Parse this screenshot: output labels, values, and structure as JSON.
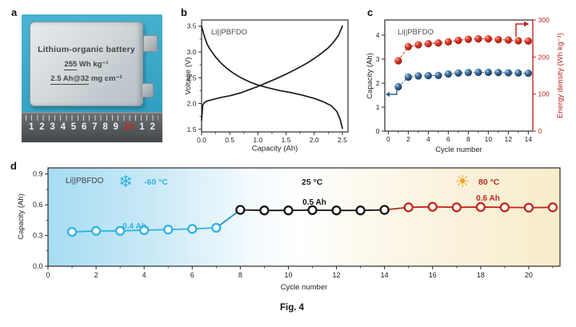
{
  "figure": {
    "caption": "Fig. 4"
  },
  "panels": {
    "a": {
      "label": "a"
    },
    "b": {
      "label": "b"
    },
    "c": {
      "label": "c"
    },
    "d": {
      "label": "d"
    }
  },
  "panel_a": {
    "battery_title": "Lithium-organic battery",
    "energy_value": "255",
    "energy_unit": " Wh kg⁻¹",
    "capacity_value": "2.5 Ah@32",
    "capacity_unit": " mg cm⁻²",
    "ruler_numbers": [
      "1",
      "2",
      "3",
      "4",
      "5",
      "6",
      "7",
      "8",
      "9",
      "10",
      "1",
      "2"
    ],
    "ruler_highlight_index": 9,
    "colors": {
      "photo_bg_top": "#4ab4d3",
      "photo_bg_bottom": "#2b9abc",
      "ruler_top": "#6a6f73",
      "ruler_bottom": "#42474b",
      "ruler_number": "#eef0f1",
      "ruler_highlight": "#c8281e"
    }
  },
  "chart_data": [
    {
      "id": "b",
      "type": "line",
      "title": "Li||PBFDO",
      "xlabel": "Capacity (Ah)",
      "ylabel": "Voltage (V)",
      "xlim": [
        0,
        2.6
      ],
      "ylim": [
        1.45,
        3.62
      ],
      "xticks": [
        0,
        0.5,
        1.0,
        1.5,
        2.0,
        2.5
      ],
      "xtick_labels": [
        "0.0",
        "0.5",
        "1.0",
        "1.5",
        "2.0",
        "2.5"
      ],
      "xminor": [
        0.25,
        0.75,
        1.25,
        1.75,
        2.25
      ],
      "yticks": [
        1.5,
        2.0,
        2.5,
        3.0,
        3.5
      ],
      "ytick_labels": [
        "1.5",
        "2.0",
        "2.5",
        "3.0",
        "3.5"
      ],
      "yminor": [
        1.75,
        2.25,
        2.75,
        3.25
      ],
      "line_color": "#1c1c1c",
      "series": [
        {
          "name": "charge",
          "points": [
            [
              0,
              1.68
            ],
            [
              0.02,
              1.97
            ],
            [
              0.05,
              2.02
            ],
            [
              0.1,
              2.05
            ],
            [
              0.2,
              2.08
            ],
            [
              0.35,
              2.12
            ],
            [
              0.5,
              2.15
            ],
            [
              0.7,
              2.21
            ],
            [
              0.85,
              2.27
            ],
            [
              1.0,
              2.33
            ],
            [
              1.15,
              2.4
            ],
            [
              1.3,
              2.47
            ],
            [
              1.5,
              2.57
            ],
            [
              1.7,
              2.68
            ],
            [
              1.9,
              2.8
            ],
            [
              2.1,
              2.95
            ],
            [
              2.25,
              3.08
            ],
            [
              2.35,
              3.2
            ],
            [
              2.43,
              3.32
            ],
            [
              2.5,
              3.5
            ]
          ]
        },
        {
          "name": "discharge",
          "points": [
            [
              0,
              3.5
            ],
            [
              0.02,
              3.42
            ],
            [
              0.05,
              3.3
            ],
            [
              0.1,
              3.15
            ],
            [
              0.15,
              3.05
            ],
            [
              0.25,
              2.9
            ],
            [
              0.35,
              2.78
            ],
            [
              0.45,
              2.68
            ],
            [
              0.55,
              2.6
            ],
            [
              0.7,
              2.5
            ],
            [
              0.85,
              2.42
            ],
            [
              1.0,
              2.36
            ],
            [
              1.2,
              2.3
            ],
            [
              1.4,
              2.25
            ],
            [
              1.6,
              2.21
            ],
            [
              1.8,
              2.16
            ],
            [
              2.0,
              2.1
            ],
            [
              2.15,
              2.04
            ],
            [
              2.3,
              1.96
            ],
            [
              2.4,
              1.85
            ],
            [
              2.46,
              1.7
            ],
            [
              2.5,
              1.52
            ]
          ]
        }
      ]
    },
    {
      "id": "c",
      "type": "scatter",
      "title": "Li||PBFDO",
      "xlabel": "Cycle number",
      "ylabel_left": "Capacity (Ah)",
      "ylabel_right": "Energy density (Wh kg⁻¹)",
      "xlim": [
        -0.35,
        14.45
      ],
      "ylim_left": [
        0,
        4.63
      ],
      "ylim_right": [
        0,
        300
      ],
      "xticks": [
        0,
        2,
        4,
        6,
        8,
        10,
        12,
        14
      ],
      "xminor": [
        1,
        3,
        5,
        7,
        9,
        11,
        13
      ],
      "yticks_left": [
        0,
        1,
        2,
        3,
        4
      ],
      "yticks_right": [
        0,
        100,
        200,
        300
      ],
      "cycles": [
        1,
        2,
        3,
        4,
        5,
        6,
        7,
        8,
        9,
        10,
        11,
        12,
        13,
        14
      ],
      "capacity_ah": [
        1.85,
        2.25,
        2.3,
        2.31,
        2.32,
        2.38,
        2.42,
        2.44,
        2.45,
        2.45,
        2.44,
        2.43,
        2.42,
        2.41
      ],
      "energy_density": [
        190,
        228,
        233,
        236,
        238,
        241,
        245,
        248,
        249,
        249,
        247,
        246,
        244,
        243
      ],
      "capacity_color": "#2e618f",
      "energy_color": "#c0231b"
    },
    {
      "id": "d",
      "type": "line",
      "title": "Li||PBFDO",
      "xlabel": "Cycle number",
      "ylabel": "Capacity (Ah)",
      "xlim": [
        0,
        21.3
      ],
      "ylim": [
        0,
        0.96
      ],
      "xticks": [
        0,
        2,
        4,
        6,
        8,
        10,
        12,
        14,
        16,
        18,
        20
      ],
      "xminor": [
        1,
        3,
        5,
        7,
        9,
        11,
        13,
        15,
        17,
        19,
        21
      ],
      "yticks": [
        0,
        0.3,
        0.6,
        0.9
      ],
      "ytick_labels": [
        "0.0",
        "0.3",
        "0.6",
        "0.9"
      ],
      "yminor": [
        0.15,
        0.45,
        0.75
      ],
      "bg_gradient": [
        "#a6dcf3",
        "#cdeaf7",
        "#f4fbfe",
        "#ffffff",
        "#fdfaf0",
        "#faf2dd",
        "#f7ecca"
      ],
      "segments": [
        {
          "name": "cold",
          "temp_label": "-60 °C",
          "icon": "❄",
          "capacity_label": "0.4 Ah",
          "color": "#2fb2e4",
          "cycles": [
            1,
            2,
            3,
            4,
            5,
            6,
            7
          ],
          "values": [
            0.335,
            0.345,
            0.345,
            0.352,
            0.358,
            0.365,
            0.375
          ]
        },
        {
          "name": "room",
          "temp_label": "25 °C",
          "icon": "",
          "capacity_label": "0.5 Ah",
          "color": "#151515",
          "cycles": [
            8,
            9,
            10,
            11,
            12,
            13,
            14
          ],
          "values": [
            0.55,
            0.545,
            0.545,
            0.548,
            0.545,
            0.545,
            0.55
          ]
        },
        {
          "name": "hot",
          "temp_label": "80 °C",
          "icon": "☀",
          "capacity_label": "0.6 Ah",
          "color": "#c4271d",
          "cycles": [
            15,
            16,
            17,
            18,
            19,
            20,
            21
          ],
          "values": [
            0.575,
            0.58,
            0.575,
            0.578,
            0.575,
            0.572,
            0.575
          ]
        }
      ],
      "connector_colors": [
        "#1e96bb",
        "#b02a20"
      ],
      "icon_colors": {
        "snowflake": "#2fb2e4",
        "sun": "#f0a818"
      }
    }
  ]
}
